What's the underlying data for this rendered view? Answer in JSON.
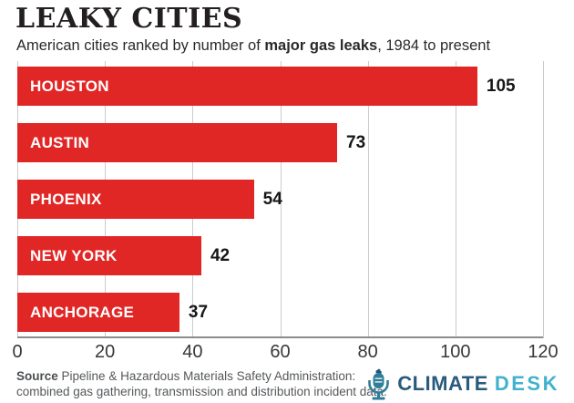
{
  "header": {
    "title": "LEAKY CITIES",
    "subtitle_prefix": "American cities ranked by number of ",
    "subtitle_bold": "major gas leaks",
    "subtitle_suffix": ", 1984 to present"
  },
  "chart_data": {
    "type": "bar",
    "orientation": "horizontal",
    "title": "LEAKY CITIES",
    "subtitle": "American cities ranked by number of major gas leaks, 1984 to present",
    "categories": [
      "HOUSTON",
      "AUSTIN",
      "PHOENIX",
      "NEW YORK",
      "ANCHORAGE"
    ],
    "values": [
      105,
      73,
      54,
      42,
      37
    ],
    "xlabel": "",
    "ylabel": "",
    "xlim": [
      0,
      120
    ],
    "xticks": [
      0,
      20,
      40,
      60,
      80,
      100,
      120
    ],
    "grid": true,
    "legend": false,
    "colors": {
      "bar": "#e12726",
      "bar_label": "#ffffff",
      "value_label": "#161616",
      "gridline": "#cbcbcb",
      "axis_line": "#8c8c8c"
    }
  },
  "footer": {
    "source_label": "Source",
    "source_line1_rest": " Pipeline & Hazardous Materials Safety Administration:",
    "source_line2": "combined gas gathering, transmission and distribution incident data.",
    "logo": {
      "climate": "CLIMATE",
      "desk": "DESK",
      "climate_color": "#2a5a7c",
      "desk_color": "#41b2cd",
      "mic_teal": "#2e7e99",
      "mic_dark": "#24547a"
    }
  }
}
